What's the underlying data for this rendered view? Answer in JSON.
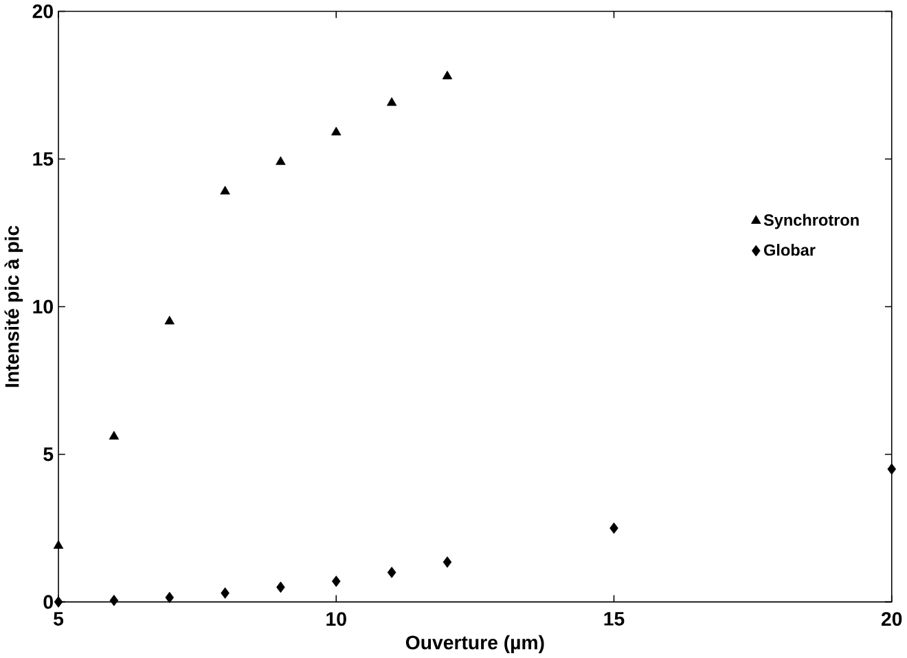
{
  "chart_data": {
    "type": "scatter",
    "xlabel": "Ouverture (µm)",
    "ylabel": "Intensité pic à pic",
    "x": [
      5,
      6,
      7,
      8,
      9,
      10,
      11,
      12,
      15,
      20
    ],
    "series": [
      {
        "name": "Synchrotron",
        "color": "#000000",
        "marker": "triangle",
        "values": [
          1.9,
          5.6,
          9.5,
          13.9,
          14.9,
          15.9,
          16.9,
          17.8,
          null,
          null
        ]
      },
      {
        "name": "Globar",
        "color": "#000000",
        "marker": "diamond",
        "values": [
          0,
          0.05,
          0.15,
          0.3,
          0.5,
          0.7,
          1.0,
          1.35,
          2.5,
          4.5
        ]
      }
    ],
    "xlim": [
      5,
      20
    ],
    "ylim": [
      0,
      20
    ],
    "xticks": [
      5,
      10,
      15,
      20
    ],
    "yticks": [
      0,
      5,
      10,
      15,
      20
    ],
    "grid": false,
    "legend": "right"
  }
}
